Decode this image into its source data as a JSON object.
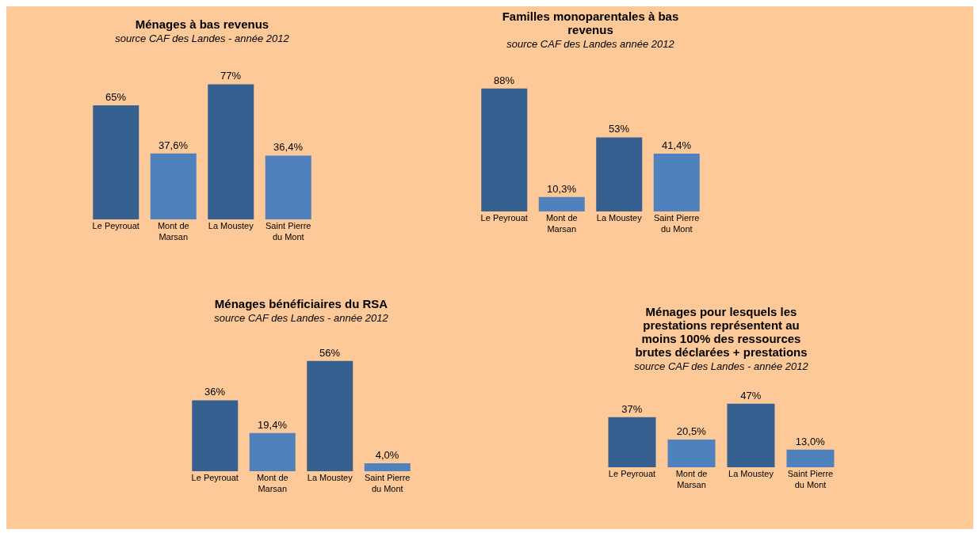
{
  "chart_data": [
    {
      "type": "bar",
      "title": "Ménages à bas revenus",
      "subtitle": "source CAF des Landes -  année 2012",
      "categories": [
        "Le Peyrouat",
        "Mont de Marsan",
        "La Moustey",
        "Saint Pierre du Mont"
      ],
      "values": [
        65,
        37.6,
        77,
        36.4
      ],
      "value_labels": [
        "65%",
        "37,6%",
        "77%",
        "36,4%"
      ],
      "colors": [
        "#36608f",
        "#4f81bd",
        "#36608f",
        "#4f81bd"
      ]
    },
    {
      "type": "bar",
      "title": "Familles monoparentales à bas revenus",
      "subtitle": "source CAF des Landes année 2012",
      "categories": [
        "Le Peyrouat",
        "Mont de Marsan",
        "La Moustey",
        "Saint Pierre du Mont"
      ],
      "values": [
        88,
        10.3,
        53,
        41.4
      ],
      "value_labels": [
        "88%",
        "10,3%",
        "53%",
        "41,4%"
      ],
      "colors": [
        "#36608f",
        "#4f81bd",
        "#36608f",
        "#4f81bd"
      ]
    },
    {
      "type": "bar",
      "title": "Ménages bénéficiaires du RSA",
      "subtitle": "source CAF des Landes -  année 2012",
      "categories": [
        "Le Peyrouat",
        "Mont de Marsan",
        "La Moustey",
        "Saint Pierre du Mont"
      ],
      "values": [
        36,
        19.4,
        56,
        4.0
      ],
      "value_labels": [
        "36%",
        "19,4%",
        "56%",
        "4,0%"
      ],
      "colors": [
        "#36608f",
        "#4f81bd",
        "#36608f",
        "#4f81bd"
      ]
    },
    {
      "type": "bar",
      "title": "Ménages pour lesquels les prestations représentent au moins 100% des ressources brutes déclarées + prestations",
      "subtitle": "source CAF des Landes - année 2012",
      "categories": [
        "Le Peyrouat",
        "Mont de Marsan",
        "La Moustey",
        "Saint Pierre du Mont"
      ],
      "values": [
        37,
        20.5,
        47,
        13.0
      ],
      "value_labels": [
        "37%",
        "20,5%",
        "47%",
        "13,0%"
      ],
      "colors": [
        "#36608f",
        "#4f81bd",
        "#36608f",
        "#4f81bd"
      ]
    }
  ]
}
